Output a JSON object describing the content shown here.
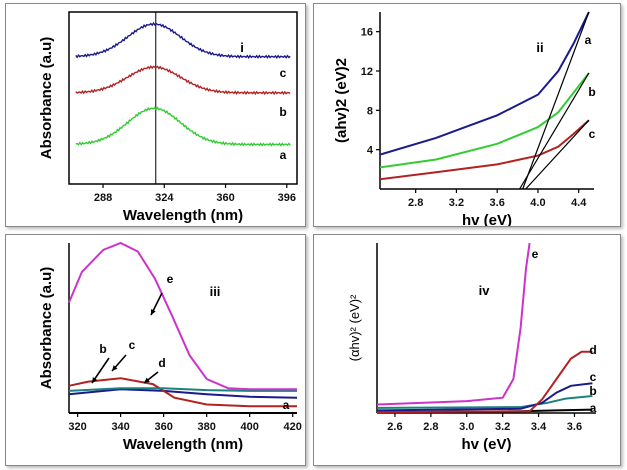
{
  "chart_data": [
    {
      "panel_label": "i",
      "type": "line",
      "xlabel": "Wavelength (nm)",
      "ylabel": "Absorbance (a.u)",
      "xlim": [
        268,
        402
      ],
      "ylim": [
        0,
        10
      ],
      "xticks": [
        "288",
        "324",
        "360",
        "396"
      ],
      "xtick_values": [
        288,
        324,
        360,
        396
      ],
      "vline_x": 319,
      "curve_labels": [
        "a",
        "b",
        "c"
      ],
      "colors": [
        "#33cc33",
        "#b22222",
        "#1a1a8c"
      ],
      "series": [
        {
          "name": "a",
          "baseline": 2.3,
          "peak": 4.4,
          "center": 318,
          "width": 22
        },
        {
          "name": "b",
          "baseline": 5.3,
          "peak": 6.8,
          "center": 318,
          "width": 22
        },
        {
          "name": "c",
          "baseline": 7.4,
          "peak": 9.3,
          "center": 318,
          "width": 22
        }
      ]
    },
    {
      "panel_label": "ii",
      "type": "line",
      "xlabel": "hv (eV)",
      "ylabel": "(ahv)2 (eV)2",
      "xlim": [
        2.45,
        4.55
      ],
      "ylim": [
        0,
        18
      ],
      "xticks": [
        "2.8",
        "3.2",
        "3.6",
        "4.0",
        "4.4"
      ],
      "xtick_values": [
        2.8,
        3.2,
        3.6,
        4.0,
        4.4
      ],
      "yticks": [
        "4",
        "8",
        "12",
        "16"
      ],
      "ytick_values": [
        4,
        8,
        12,
        16
      ],
      "curve_labels": [
        "a",
        "b",
        "c"
      ],
      "colors": [
        "#1a1a8c",
        "#33cc33",
        "#b22222"
      ],
      "series": [
        {
          "name": "a",
          "x": [
            2.45,
            3.0,
            3.6,
            4.0,
            4.2,
            4.35,
            4.5
          ],
          "y": [
            3.5,
            5.2,
            7.5,
            9.6,
            12.0,
            14.8,
            18.0
          ]
        },
        {
          "name": "b",
          "x": [
            2.45,
            3.0,
            3.6,
            4.0,
            4.2,
            4.35,
            4.5
          ],
          "y": [
            2.2,
            3.0,
            4.6,
            6.3,
            7.8,
            9.8,
            11.8
          ]
        },
        {
          "name": "c",
          "x": [
            2.45,
            3.0,
            3.6,
            4.0,
            4.2,
            4.35,
            4.5
          ],
          "y": [
            1.0,
            1.7,
            2.5,
            3.4,
            4.3,
            5.6,
            7.0
          ]
        }
      ],
      "tangents": [
        {
          "name": "a",
          "x": [
            3.85,
            4.5
          ],
          "y": [
            0,
            18
          ]
        },
        {
          "name": "b",
          "x": [
            3.82,
            4.5
          ],
          "y": [
            0,
            11.8
          ]
        },
        {
          "name": "c",
          "x": [
            3.88,
            4.5
          ],
          "y": [
            0,
            7.0
          ]
        }
      ]
    },
    {
      "panel_label": "iii",
      "type": "line",
      "xlabel": "Wavelength (nm)",
      "ylabel": "Absorbance (a.u)",
      "xlim": [
        316,
        422
      ],
      "ylim": [
        0,
        10
      ],
      "xticks": [
        "320",
        "340",
        "360",
        "380",
        "400",
        "420"
      ],
      "xtick_values": [
        320,
        340,
        360,
        380,
        400,
        420
      ],
      "curve_labels": [
        "a",
        "b",
        "c",
        "d",
        "e"
      ],
      "colors": [
        "#000000",
        "#1a1a8c",
        "#b22222",
        "#1f8080",
        "#cc33cc"
      ],
      "series": [
        {
          "name": "a",
          "x": [
            316,
            422
          ],
          "y": [
            0.0,
            0.0
          ]
        },
        {
          "name": "b",
          "x": [
            316,
            340,
            360,
            380,
            400,
            422
          ],
          "y": [
            1.1,
            1.4,
            1.3,
            1.1,
            0.95,
            0.9
          ]
        },
        {
          "name": "c",
          "x": [
            316,
            325,
            340,
            355,
            365,
            380,
            400,
            422
          ],
          "y": [
            1.6,
            1.85,
            2.05,
            1.7,
            0.9,
            0.5,
            0.4,
            0.4
          ]
        },
        {
          "name": "d",
          "x": [
            316,
            340,
            360,
            380,
            400,
            422
          ],
          "y": [
            1.3,
            1.45,
            1.45,
            1.35,
            1.3,
            1.3
          ]
        },
        {
          "name": "e",
          "x": [
            316,
            322,
            332,
            340,
            348,
            356,
            364,
            372,
            380,
            390,
            400,
            422
          ],
          "y": [
            6.5,
            8.3,
            9.6,
            10.0,
            9.5,
            7.9,
            5.7,
            3.4,
            2.0,
            1.45,
            1.4,
            1.4
          ]
        }
      ]
    },
    {
      "panel_label": "iv",
      "type": "line",
      "xlabel": "hv (eV)",
      "ylabel": "(αhv)² (eV)²",
      "xlim": [
        2.5,
        3.72
      ],
      "ylim": [
        0,
        10
      ],
      "xticks": [
        "2.6",
        "2.8",
        "3.0",
        "3.2",
        "3.4",
        "3.6"
      ],
      "xtick_values": [
        2.6,
        2.8,
        3.0,
        3.2,
        3.4,
        3.6
      ],
      "curve_labels": [
        "a",
        "b",
        "c",
        "d",
        "e"
      ],
      "colors": [
        "#000000",
        "#1f8080",
        "#1a1a8c",
        "#b22222",
        "#cc33cc"
      ],
      "series": [
        {
          "name": "a",
          "x": [
            2.5,
            3.3,
            3.5,
            3.7
          ],
          "y": [
            0.05,
            0.1,
            0.15,
            0.2
          ]
        },
        {
          "name": "b",
          "x": [
            2.5,
            3.3,
            3.45,
            3.55,
            3.7
          ],
          "y": [
            0.3,
            0.35,
            0.6,
            0.85,
            1.0
          ]
        },
        {
          "name": "c",
          "x": [
            2.5,
            3.3,
            3.42,
            3.5,
            3.58,
            3.7
          ],
          "y": [
            0.15,
            0.25,
            0.6,
            1.2,
            1.6,
            1.75
          ]
        },
        {
          "name": "d",
          "x": [
            2.5,
            3.35,
            3.42,
            3.5,
            3.58,
            3.64,
            3.7
          ],
          "y": [
            0.05,
            0.1,
            0.8,
            2.0,
            3.2,
            3.6,
            3.6
          ]
        },
        {
          "name": "e",
          "x": [
            2.5,
            3.0,
            3.2,
            3.26,
            3.3,
            3.33,
            3.35
          ],
          "y": [
            0.5,
            0.7,
            0.9,
            2.0,
            5.0,
            8.5,
            10.0
          ]
        }
      ]
    }
  ]
}
